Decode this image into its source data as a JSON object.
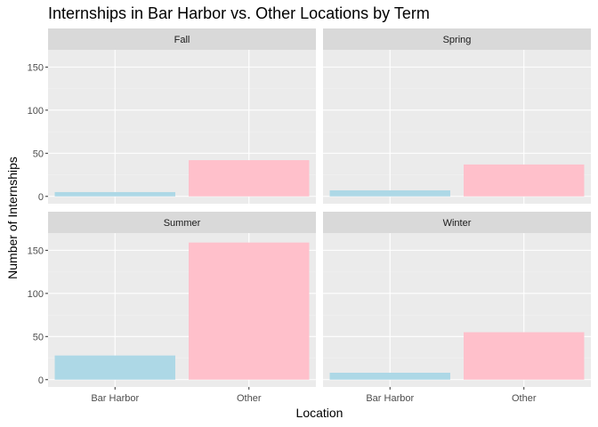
{
  "chart_data": {
    "type": "bar",
    "title": "Internships in Bar Harbor vs. Other Locations by Term",
    "xlabel": "Location",
    "ylabel": "Number of Internships",
    "categories": [
      "Bar Harbor",
      "Other"
    ],
    "ylim": [
      0,
      170
    ],
    "yticks": [
      0,
      50,
      100,
      150
    ],
    "grid": true,
    "legend": "none",
    "bar_colors": {
      "Bar Harbor": "#ADD8E6",
      "Other": "#FFC0CB"
    },
    "panel_background": "#EBEBEB",
    "strip_background": "#D9D9D9",
    "panels": [
      {
        "term": "Fall",
        "values": [
          5,
          42
        ]
      },
      {
        "term": "Spring",
        "values": [
          7,
          37
        ]
      },
      {
        "term": "Summer",
        "values": [
          28,
          159
        ]
      },
      {
        "term": "Winter",
        "values": [
          8,
          55
        ]
      }
    ]
  }
}
